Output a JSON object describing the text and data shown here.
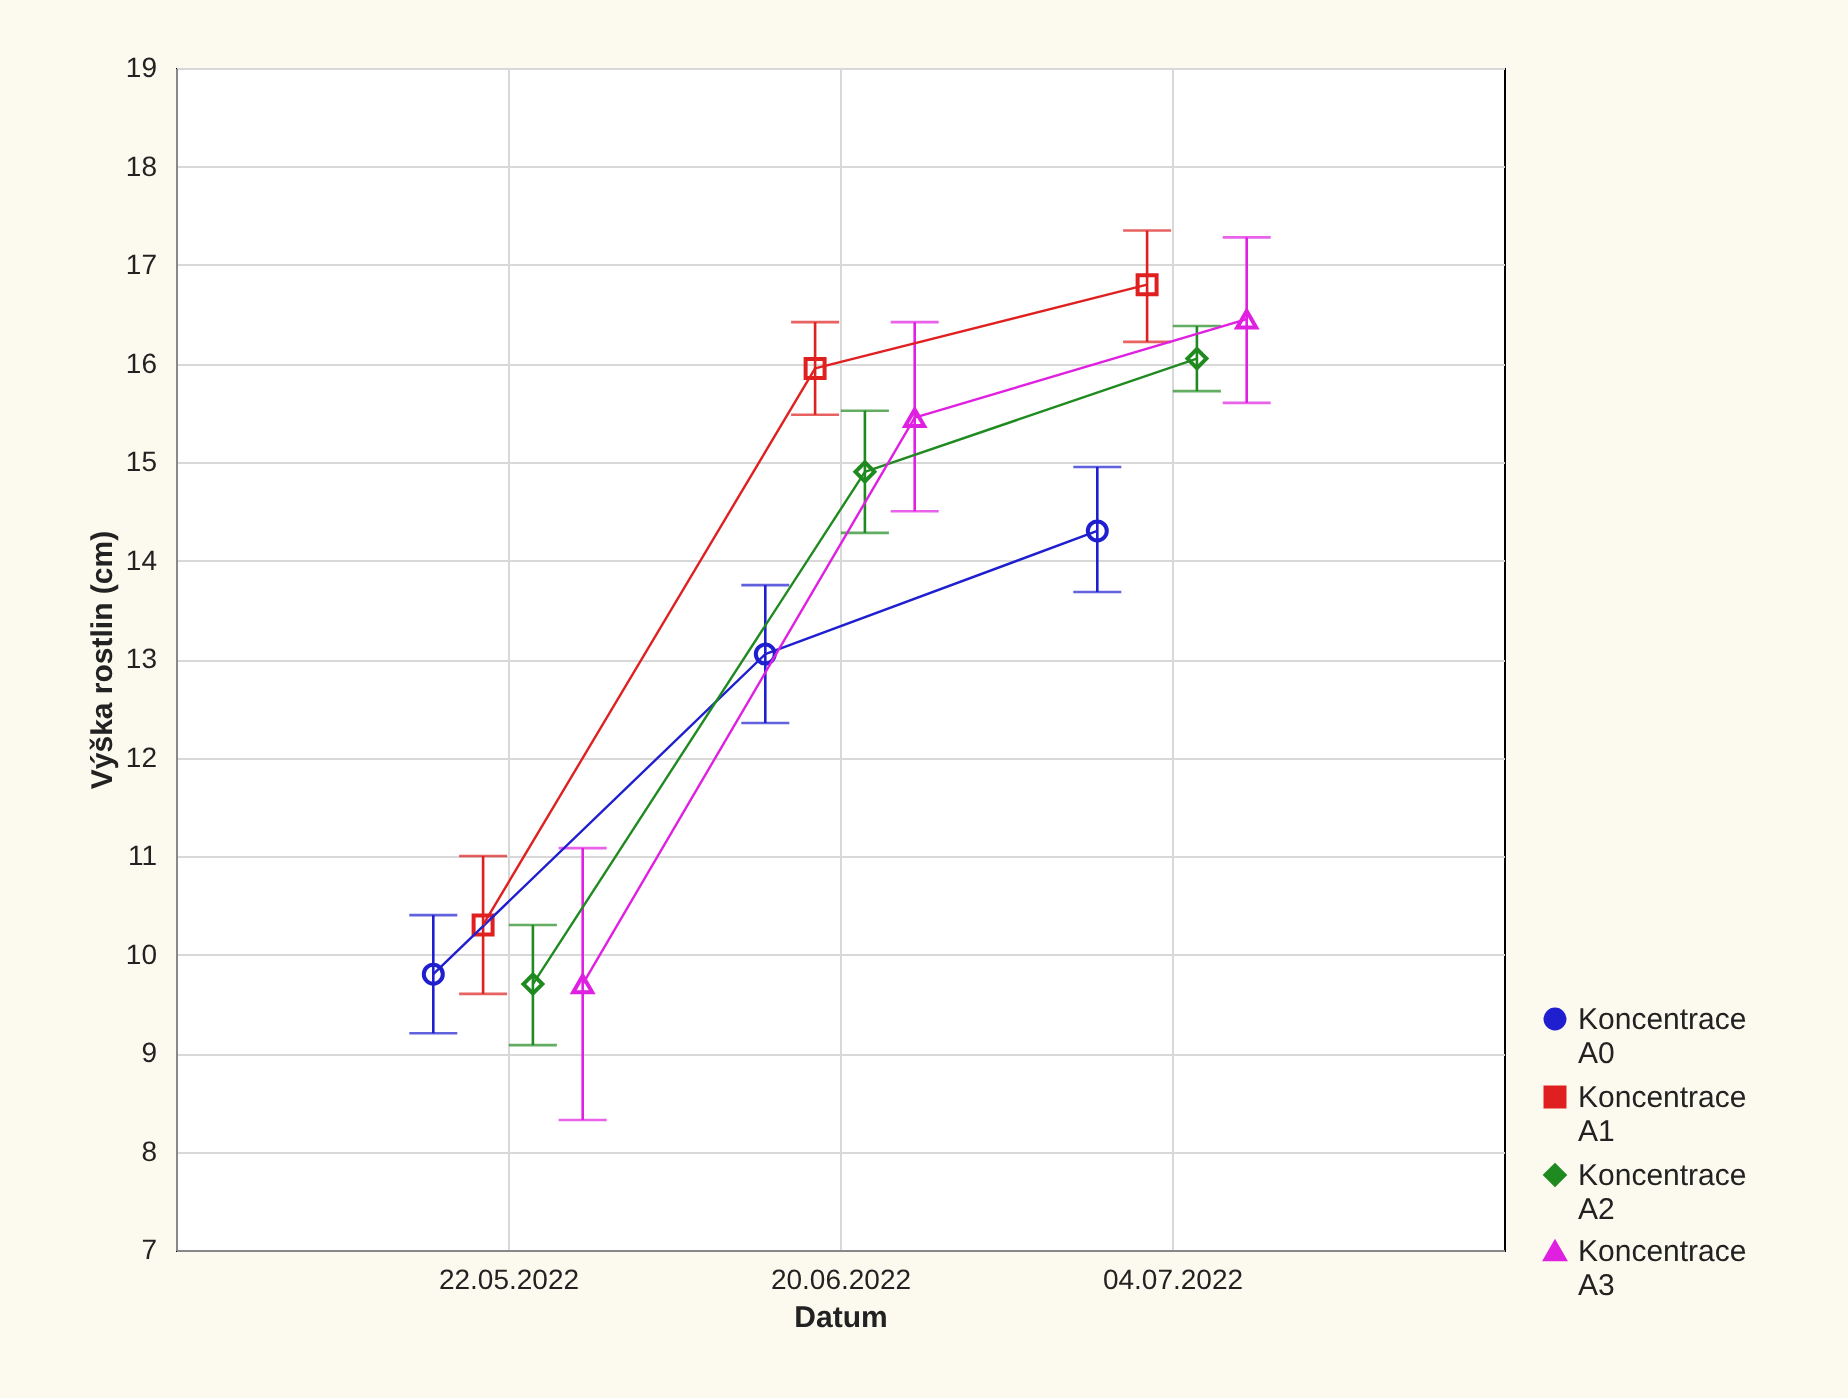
{
  "chart_data": {
    "type": "line",
    "xlabel": "Datum",
    "ylabel": "Výška rostlin (cm)",
    "categories": [
      "22.05.2022",
      "20.06.2022",
      "04.07.2022"
    ],
    "ylim": [
      7,
      19
    ],
    "yticks": [
      7,
      8,
      9,
      10,
      11,
      12,
      13,
      14,
      15,
      16,
      17,
      18,
      19
    ],
    "grid": true,
    "legend": "bottom right",
    "series": [
      {
        "name": "Koncentrace A0",
        "color": "#1f1fd0",
        "marker": "circle",
        "values": [
          9.8,
          13.05,
          14.3
        ],
        "errors": [
          [
            9.2,
            10.4
          ],
          [
            12.35,
            13.75
          ],
          [
            13.68,
            14.95
          ]
        ]
      },
      {
        "name": "Koncentrace A1",
        "color": "#e02020",
        "marker": "square",
        "values": [
          10.3,
          15.95,
          16.8
        ],
        "errors": [
          [
            9.6,
            11.0
          ],
          [
            15.48,
            16.42
          ],
          [
            16.22,
            17.35
          ]
        ]
      },
      {
        "name": "Koncentrace A2",
        "color": "#1f8a1f",
        "marker": "diamond",
        "values": [
          9.7,
          14.9,
          16.05
        ],
        "errors": [
          [
            9.08,
            10.3
          ],
          [
            14.28,
            15.52
          ],
          [
            15.72,
            16.38
          ]
        ]
      },
      {
        "name": "Koncentrace A3",
        "color": "#e020e0",
        "marker": "triangle",
        "values": [
          9.7,
          15.45,
          16.45
        ],
        "errors": [
          [
            8.32,
            11.08
          ],
          [
            14.5,
            16.42
          ],
          [
            15.6,
            17.28
          ]
        ]
      }
    ]
  }
}
